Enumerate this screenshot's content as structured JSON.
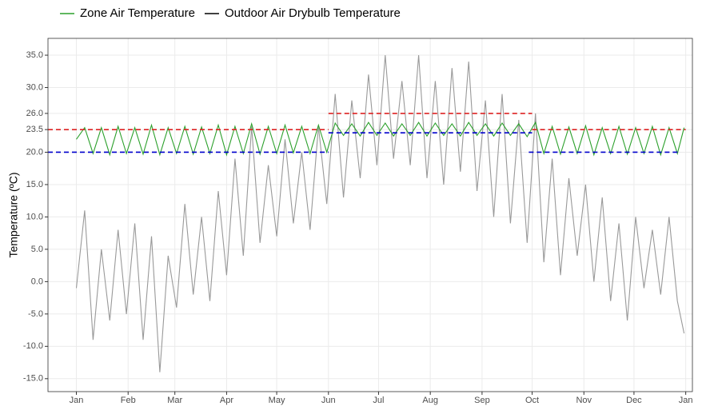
{
  "chart_data": {
    "type": "line",
    "y_label": "Temperature (ºC)",
    "xlim": [
      -17,
      369
    ],
    "ylim": [
      -17,
      37.6
    ],
    "xticks": [
      {
        "value": 0,
        "label": "Jan"
      },
      {
        "value": 31,
        "label": "Feb"
      },
      {
        "value": 59,
        "label": "Mar"
      },
      {
        "value": 90,
        "label": "Apr"
      },
      {
        "value": 120,
        "label": "May"
      },
      {
        "value": 151,
        "label": "Jun"
      },
      {
        "value": 181,
        "label": "Jul"
      },
      {
        "value": 212,
        "label": "Aug"
      },
      {
        "value": 243,
        "label": "Sep"
      },
      {
        "value": 273,
        "label": "Oct"
      },
      {
        "value": 304,
        "label": "Nov"
      },
      {
        "value": 334,
        "label": "Dec"
      },
      {
        "value": 365,
        "label": "Jan"
      }
    ],
    "yticks": [
      {
        "value": -15,
        "label": "-15.0"
      },
      {
        "value": -10,
        "label": "-10.0"
      },
      {
        "value": -5,
        "label": "-5.0"
      },
      {
        "value": 0,
        "label": "0.0"
      },
      {
        "value": 5,
        "label": "5.0"
      },
      {
        "value": 10,
        "label": "10.0"
      },
      {
        "value": 15,
        "label": "15.0"
      },
      {
        "value": 20,
        "label": "20.0"
      },
      23.5,
      {
        "value": 26,
        "label": "26.0"
      },
      {
        "value": 30,
        "label": "30.0"
      },
      {
        "value": 35,
        "label": "35.0"
      }
    ],
    "grid": true,
    "legend": "top",
    "x": [
      0,
      5,
      10,
      15,
      20,
      25,
      30,
      35,
      40,
      45,
      50,
      55,
      60,
      65,
      70,
      75,
      80,
      85,
      90,
      95,
      100,
      105,
      110,
      115,
      120,
      125,
      130,
      135,
      140,
      145,
      150,
      155,
      160,
      165,
      170,
      175,
      180,
      185,
      190,
      195,
      200,
      205,
      210,
      215,
      220,
      225,
      230,
      235,
      240,
      245,
      250,
      255,
      260,
      265,
      270,
      275,
      280,
      285,
      290,
      295,
      300,
      305,
      310,
      315,
      320,
      325,
      330,
      335,
      340,
      345,
      350,
      355,
      360,
      364
    ],
    "series": [
      {
        "name": "Outdoor Air Drybulb Temperature",
        "color": "#999999",
        "values": [
          -1,
          11,
          -9,
          5,
          -6,
          8,
          -5,
          9,
          -9,
          7,
          -14,
          4,
          -4,
          12,
          -2,
          10,
          -3,
          14,
          1,
          19,
          4,
          24,
          6,
          18,
          7,
          22,
          9,
          20,
          8,
          24,
          12,
          29,
          13,
          28,
          16,
          32,
          18,
          35,
          19,
          31,
          18,
          35,
          16,
          31,
          15,
          33,
          17,
          34,
          14,
          28,
          10,
          29,
          9,
          25,
          6,
          26,
          3,
          19,
          1,
          16,
          4,
          15,
          0,
          13,
          -3,
          9,
          -6,
          10,
          -1,
          8,
          -2,
          10,
          -3,
          -8
        ]
      },
      {
        "name": "Zone Air Temperature",
        "color": "#2ca02c",
        "values": [
          22,
          23.8,
          19.8,
          23.8,
          19.6,
          24,
          19.8,
          23.8,
          19.7,
          24.2,
          19.6,
          23.8,
          19.8,
          24,
          19.7,
          23.9,
          19.8,
          24.2,
          19.6,
          24,
          19.8,
          24.4,
          19.7,
          24,
          19.8,
          24.2,
          19.9,
          24,
          19.8,
          24.2,
          20,
          24.5,
          22.6,
          24.4,
          22.5,
          24.6,
          22.6,
          24.5,
          22.5,
          24.4,
          22.6,
          24.6,
          22.5,
          24.5,
          22.6,
          24.4,
          22.5,
          24.6,
          22.6,
          24.4,
          22.5,
          24.5,
          22.6,
          24.4,
          22.4,
          24.6,
          19.8,
          24,
          19.7,
          23.9,
          19.8,
          24.1,
          19.6,
          23.8,
          19.8,
          24,
          19.7,
          23.8,
          19.8,
          24,
          19.6,
          23.8,
          19.8,
          23.8
        ]
      }
    ],
    "hlines": [
      {
        "color": "#dd2222",
        "x": [
          -17,
          151
        ],
        "value": 23.5
      },
      {
        "color": "#dd2222",
        "x": [
          151,
          273
        ],
        "value": 26
      },
      {
        "color": "#dd2222",
        "x": [
          273,
          365
        ],
        "value": 23.5
      },
      {
        "color": "#0000cc",
        "x": [
          -17,
          151
        ],
        "value": 20
      },
      {
        "color": "#0000cc",
        "x": [
          151,
          273
        ],
        "value": 23
      },
      {
        "color": "#0000cc",
        "x": [
          271,
          362
        ],
        "value": 20
      }
    ]
  }
}
